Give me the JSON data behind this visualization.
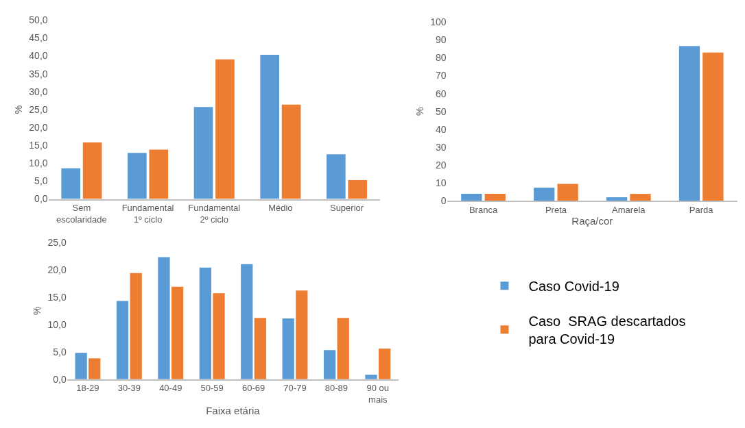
{
  "chart_data": [
    {
      "type": "bar",
      "ylabel": "%",
      "categories": [
        "Sem\nescolaridade",
        "Fundamental\n1º ciclo",
        "Fundamental\n2º ciclo",
        "Médio",
        "Superior"
      ],
      "series": [
        {
          "name": "Caso Covid-19",
          "color": "#5b9bd5",
          "values": [
            8.6,
            12.9,
            25.7,
            40.3,
            12.5
          ]
        },
        {
          "name": "Caso  SRAG descartados\npara Covid-19",
          "color": "#ed7d31",
          "values": [
            15.8,
            13.8,
            39.0,
            26.4,
            5.3
          ]
        }
      ],
      "ylim": [
        0,
        50
      ],
      "yticks": [
        {
          "value": 0,
          "label": "0,0"
        },
        {
          "value": 5,
          "label": "5,0"
        },
        {
          "value": 10,
          "label": "10,0"
        },
        {
          "value": 15,
          "label": "15,0"
        },
        {
          "value": 20,
          "label": "20,0"
        },
        {
          "value": 25,
          "label": "25,0"
        },
        {
          "value": 30,
          "label": "30,0"
        },
        {
          "value": 35,
          "label": "35,0"
        },
        {
          "value": 40,
          "label": "40,0"
        },
        {
          "value": 45,
          "label": "45,0"
        },
        {
          "value": 50,
          "label": "50,0"
        }
      ],
      "grid": false,
      "legend": "bottom right"
    },
    {
      "type": "bar",
      "xlabel": "Raça/cor",
      "ylabel": "%",
      "categories": [
        "Branca",
        "Preta",
        "Amarela",
        "Parda"
      ],
      "series": [
        {
          "color": "#5b9bd5",
          "values": [
            3.8,
            7.3,
            1.9,
            86.6
          ]
        },
        {
          "color": "#ed7d31",
          "values": [
            3.8,
            9.4,
            3.8,
            83.0
          ]
        }
      ],
      "ylim": [
        0,
        100
      ],
      "yticks": [
        0,
        10,
        20,
        30,
        40,
        50,
        60,
        70,
        80,
        90,
        100
      ],
      "grid": false
    },
    {
      "type": "bar",
      "xlabel": "Faixa etária",
      "ylabel": "%",
      "categories": [
        "18-29",
        "30-39",
        "40-49",
        "50-59",
        "60-69",
        "70-79",
        "80-89",
        "90 ou\nmais"
      ],
      "series": [
        {
          "color": "#5b9bd5",
          "values": [
            4.8,
            14.3,
            22.3,
            20.4,
            21.0,
            11.1,
            5.3,
            0.8
          ]
        },
        {
          "color": "#ed7d31",
          "values": [
            3.8,
            19.4,
            16.9,
            15.7,
            11.2,
            16.2,
            11.2,
            5.6
          ]
        }
      ],
      "ylim": [
        0,
        25
      ],
      "yticks": [
        {
          "value": 0,
          "label": "0,0"
        },
        {
          "value": 5,
          "label": "5,0"
        },
        {
          "value": 10,
          "label": "10,0"
        },
        {
          "value": 15,
          "label": "15,0"
        },
        {
          "value": 20,
          "label": "20,0"
        },
        {
          "value": 25,
          "label": "25,0"
        }
      ],
      "grid": false
    }
  ]
}
